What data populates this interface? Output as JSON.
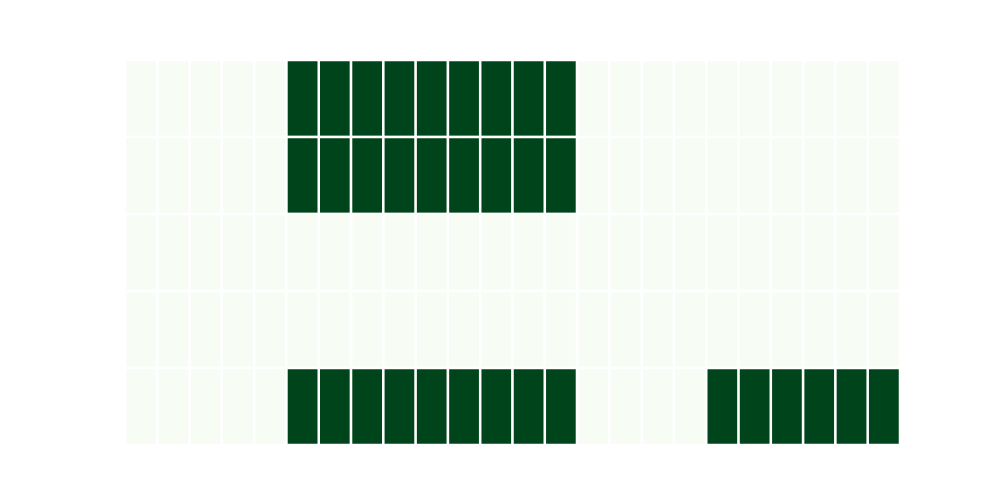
{
  "chart_data": {
    "type": "heatmap",
    "title": "",
    "xlabel": "",
    "ylabel": "",
    "grid": false,
    "legend": "none",
    "colormap": "Greens",
    "n_rows": 5,
    "n_cols": 24,
    "values": [
      [
        0,
        0,
        0,
        0,
        0,
        1,
        1,
        1,
        1,
        1,
        1,
        1,
        1,
        1,
        0,
        0,
        0,
        0,
        0,
        0,
        0,
        0,
        0,
        0
      ],
      [
        0,
        0,
        0,
        0,
        0,
        1,
        1,
        1,
        1,
        1,
        1,
        1,
        1,
        1,
        0,
        0,
        0,
        0,
        0,
        0,
        0,
        0,
        0,
        0
      ],
      [
        0,
        0,
        0,
        0,
        0,
        0,
        0,
        0,
        0,
        0,
        0,
        0,
        0,
        0,
        0,
        0,
        0,
        0,
        0,
        0,
        0,
        0,
        0,
        0
      ],
      [
        0,
        0,
        0,
        0,
        0,
        0,
        0,
        0,
        0,
        0,
        0,
        0,
        0,
        0,
        0,
        0,
        0,
        0,
        0,
        0,
        0,
        0,
        0,
        0
      ],
      [
        0,
        0,
        0,
        0,
        0,
        1,
        1,
        1,
        1,
        1,
        1,
        1,
        1,
        1,
        0,
        0,
        0,
        0,
        1,
        1,
        1,
        1,
        1,
        1
      ]
    ],
    "colors": {
      "low": "#f7fcf5",
      "high": "#00441b",
      "cell_border": "#ffffff"
    }
  }
}
